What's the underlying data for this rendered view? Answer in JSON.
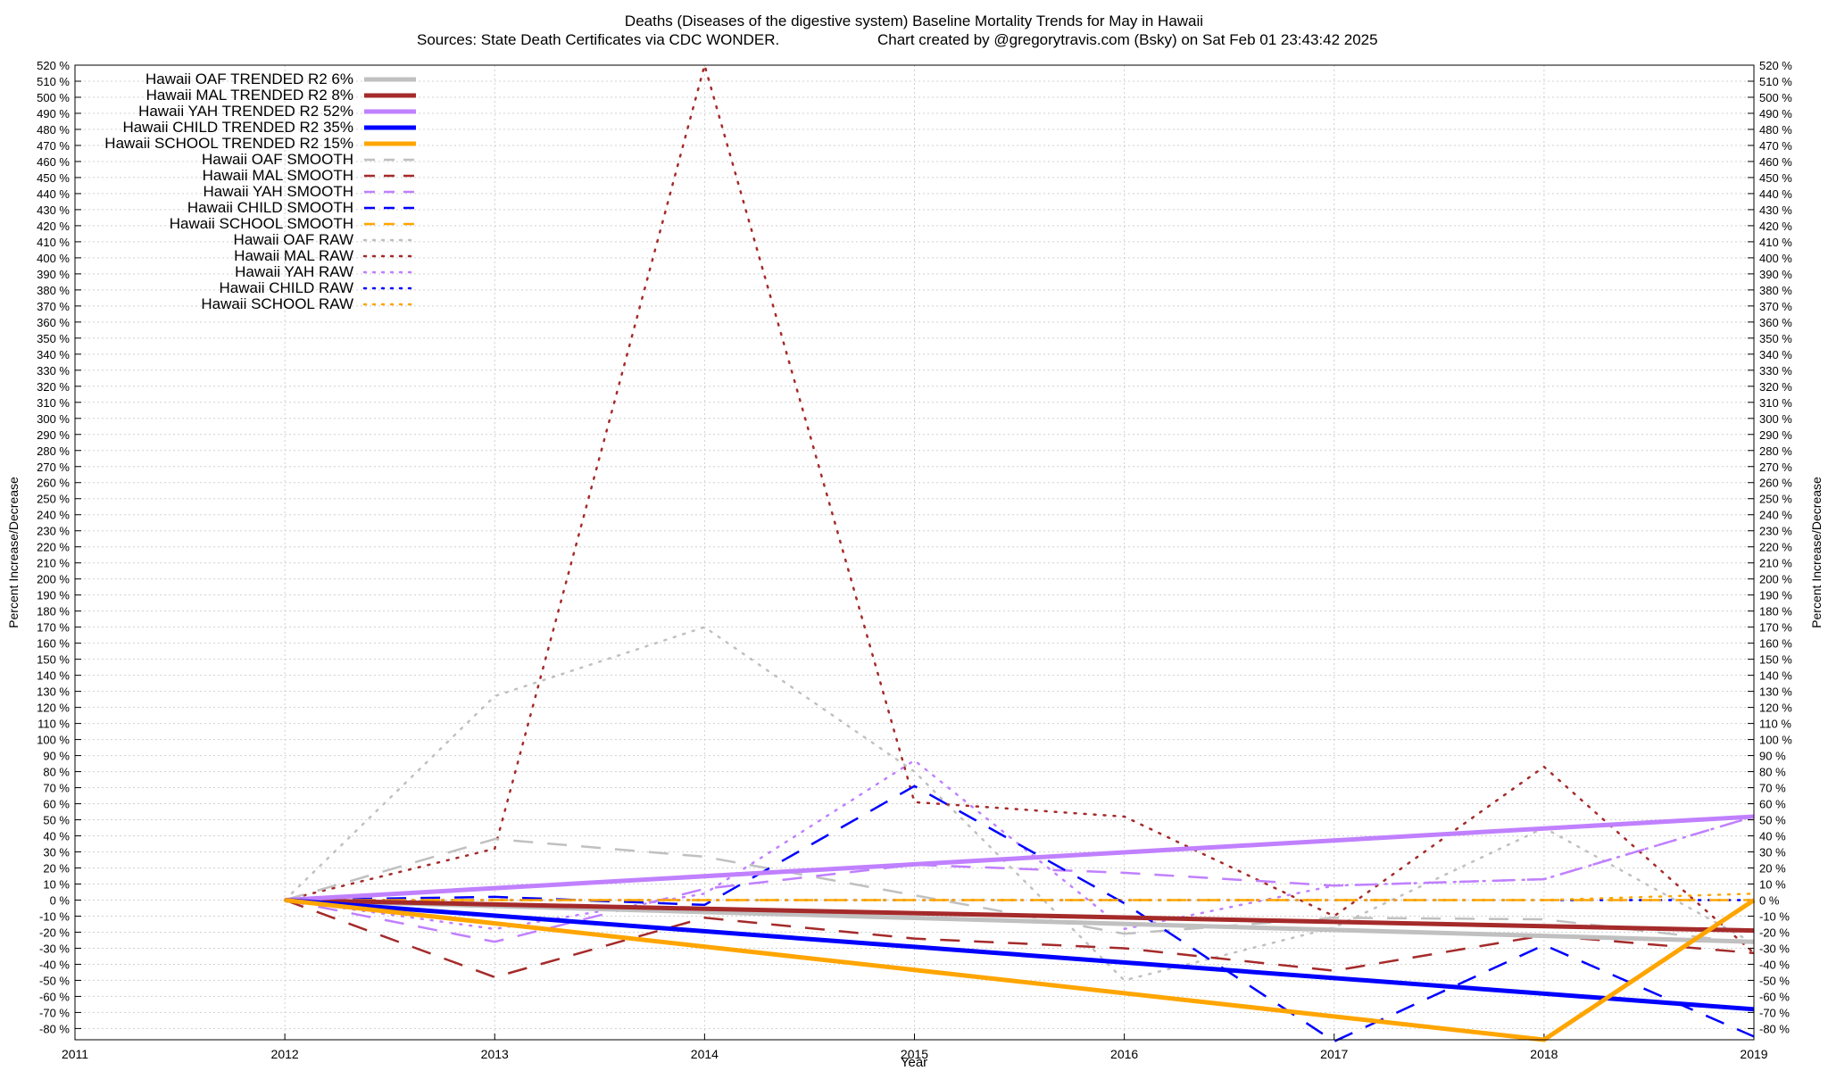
{
  "chart_data": {
    "type": "line",
    "title": "Deaths (Diseases of the digestive system)  Baseline Mortality Trends for May in Hawaii",
    "subtitle_left": "Sources: State Death Certificates via CDC WONDER.",
    "subtitle_right": "Chart created by @gregorytravis.com (Bsky) on Sat Feb 01 23:43:42 2025",
    "xlabel": "Year",
    "ylabel": "Percent Increase/Decrease",
    "y2label": "Percent Increase/Decrease",
    "xlim": [
      2011,
      2019
    ],
    "ylim": [
      -87,
      520
    ],
    "x_ticks": [
      2011,
      2012,
      2013,
      2014,
      2015,
      2016,
      2017,
      2018,
      2019
    ],
    "y_tick_start": -80,
    "y_tick_end": 520,
    "y_tick_step": 10,
    "y_tick_suffix": " %",
    "grid": true,
    "legend_position": "top-left",
    "series": [
      {
        "name": "Hawaii OAF TRENDED R2  6%",
        "color": "#c0c0c0",
        "style": "solid",
        "width": 5,
        "x": [
          2012,
          2019
        ],
        "y": [
          0,
          -26
        ]
      },
      {
        "name": "Hawaii MAL TRENDED R2  8%",
        "color": "#a52a2a",
        "style": "solid",
        "width": 5,
        "x": [
          2012,
          2019
        ],
        "y": [
          0,
          -19
        ]
      },
      {
        "name": "Hawaii YAH TRENDED R2  52%",
        "color": "#c080ff",
        "style": "solid",
        "width": 5,
        "x": [
          2012,
          2019
        ],
        "y": [
          0,
          52
        ]
      },
      {
        "name": "Hawaii CHILD TRENDED R2  35%",
        "color": "#0000ff",
        "style": "solid",
        "width": 5,
        "x": [
          2012,
          2019
        ],
        "y": [
          0,
          -68
        ]
      },
      {
        "name": "Hawaii SCHOOL TRENDED R2  15%",
        "color": "#ffa500",
        "style": "solid",
        "width": 5,
        "x": [
          2012,
          2018,
          2019
        ],
        "y": [
          0,
          -87,
          0
        ]
      },
      {
        "name": "Hawaii OAF SMOOTH",
        "color": "#c0c0c0",
        "style": "dash",
        "width": 2.5,
        "x": [
          2012,
          2013,
          2014,
          2015,
          2016,
          2017,
          2018,
          2019
        ],
        "y": [
          0,
          38,
          27,
          3,
          -21,
          -11,
          -12,
          -27
        ]
      },
      {
        "name": "Hawaii MAL SMOOTH",
        "color": "#a52a2a",
        "style": "dash",
        "width": 2.5,
        "x": [
          2012,
          2013,
          2014,
          2015,
          2016,
          2017,
          2018,
          2019
        ],
        "y": [
          0,
          -48,
          -11,
          -24,
          -30,
          -44,
          -22,
          -33
        ]
      },
      {
        "name": "Hawaii YAH SMOOTH",
        "color": "#c080ff",
        "style": "dash",
        "width": 2.5,
        "x": [
          2012,
          2013,
          2014,
          2015,
          2016,
          2017,
          2018,
          2019
        ],
        "y": [
          0,
          -26,
          7,
          22,
          17,
          9,
          13,
          52
        ]
      },
      {
        "name": "Hawaii CHILD SMOOTH",
        "color": "#0000ff",
        "style": "dash",
        "width": 2.5,
        "x": [
          2012,
          2013,
          2014,
          2015,
          2016,
          2017,
          2018,
          2019
        ],
        "y": [
          0,
          2,
          -3,
          71,
          -2,
          -88,
          -28,
          -85
        ]
      },
      {
        "name": "Hawaii SCHOOL SMOOTH",
        "color": "#ffa500",
        "style": "dash",
        "width": 2.5,
        "x": [
          2012,
          2013,
          2014,
          2015,
          2016,
          2017,
          2018,
          2019
        ],
        "y": [
          0,
          0,
          0,
          0,
          0,
          0,
          0,
          0
        ]
      },
      {
        "name": "Hawaii OAF RAW",
        "color": "#c0c0c0",
        "style": "dot",
        "width": 2.5,
        "x": [
          2012,
          2013,
          2014,
          2015,
          2016,
          2017,
          2018,
          2019
        ],
        "y": [
          0,
          127,
          170,
          80,
          -50,
          -17,
          45,
          -27
        ]
      },
      {
        "name": "Hawaii MAL RAW",
        "color": "#a52a2a",
        "style": "dot",
        "width": 2.5,
        "x": [
          2012,
          2013,
          2014,
          2015,
          2016,
          2017,
          2018,
          2019
        ],
        "y": [
          0,
          32,
          520,
          61,
          52,
          -10,
          83,
          -33
        ]
      },
      {
        "name": "Hawaii YAH RAW",
        "color": "#c080ff",
        "style": "dot",
        "width": 2.5,
        "x": [
          2012,
          2013,
          2014,
          2015,
          2016,
          2017,
          2018,
          2019
        ],
        "y": [
          0,
          -18,
          4,
          87,
          -18,
          9,
          13,
          52
        ]
      },
      {
        "name": "Hawaii CHILD RAW",
        "color": "#0000ff",
        "style": "dot",
        "width": 2.5,
        "x": [
          2012,
          2013,
          2014,
          2015,
          2016,
          2017,
          2018,
          2019
        ],
        "y": [
          0,
          0,
          0,
          0,
          0,
          0,
          0,
          0
        ]
      },
      {
        "name": "Hawaii SCHOOL RAW",
        "color": "#ffa500",
        "style": "dot",
        "width": 2.5,
        "x": [
          2012,
          2013,
          2014,
          2015,
          2016,
          2017,
          2018,
          2019
        ],
        "y": [
          0,
          0,
          0,
          0,
          0,
          0,
          0,
          4
        ]
      }
    ]
  }
}
